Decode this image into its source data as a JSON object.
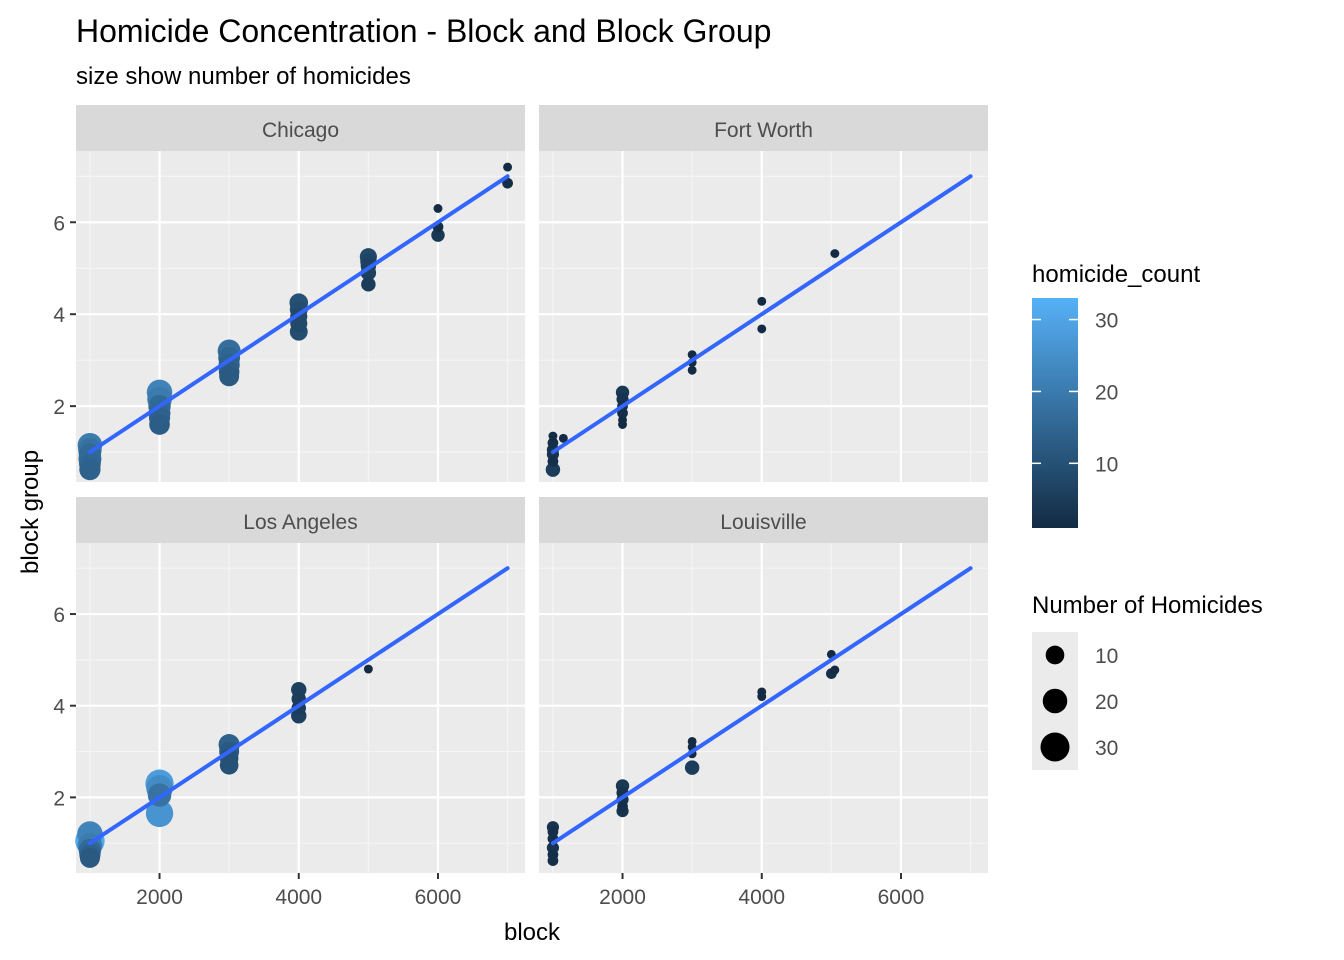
{
  "chart_data": {
    "type": "scatter",
    "title": "Homicide Concentration -  Block and Block Group",
    "subtitle": "size show number of homicides",
    "xlabel": "block",
    "ylabel": "block group",
    "xlim": [
      800,
      7250
    ],
    "ylim": [
      0.35,
      7.55
    ],
    "x_ticks": [
      2000,
      4000,
      6000
    ],
    "x_tick_labels": [
      "2000",
      "4000",
      "6000"
    ],
    "y_ticks": [
      2,
      4,
      6
    ],
    "y_tick_labels": [
      "2",
      "4",
      "6"
    ],
    "grid": true,
    "facets": [
      {
        "name": "Chicago",
        "points": [
          [
            1000,
            1.15,
            20
          ],
          [
            1000,
            1.05,
            18
          ],
          [
            1000,
            0.95,
            16
          ],
          [
            1000,
            0.85,
            17
          ],
          [
            1000,
            0.75,
            15
          ],
          [
            1000,
            0.62,
            14
          ],
          [
            2000,
            2.3,
            22
          ],
          [
            2000,
            2.15,
            20
          ],
          [
            2000,
            2.0,
            16
          ],
          [
            2000,
            1.85,
            15
          ],
          [
            2000,
            1.75,
            14
          ],
          [
            2000,
            1.6,
            13
          ],
          [
            3000,
            3.2,
            17
          ],
          [
            3000,
            3.05,
            15
          ],
          [
            3000,
            2.9,
            14
          ],
          [
            3000,
            2.75,
            13
          ],
          [
            3000,
            2.65,
            12
          ],
          [
            4000,
            4.25,
            10
          ],
          [
            4000,
            4.1,
            9
          ],
          [
            4000,
            3.95,
            8
          ],
          [
            4000,
            3.8,
            8
          ],
          [
            4000,
            3.62,
            9
          ],
          [
            5000,
            5.25,
            8
          ],
          [
            5000,
            5.15,
            7
          ],
          [
            5000,
            5.05,
            6
          ],
          [
            5000,
            4.9,
            6
          ],
          [
            5000,
            4.65,
            5
          ],
          [
            6000,
            6.3,
            1
          ],
          [
            6000,
            5.9,
            2
          ],
          [
            6000,
            5.72,
            4
          ],
          [
            7000,
            7.2,
            1
          ],
          [
            7000,
            6.85,
            2
          ]
        ]
      },
      {
        "name": "Fort Worth",
        "points": [
          [
            1000,
            1.35,
            1
          ],
          [
            1000,
            1.2,
            2
          ],
          [
            1000,
            1.05,
            3
          ],
          [
            1000,
            0.95,
            3
          ],
          [
            1000,
            0.8,
            2
          ],
          [
            1000,
            0.62,
            5
          ],
          [
            1150,
            1.3,
            1
          ],
          [
            2000,
            2.3,
            4
          ],
          [
            2000,
            2.15,
            3
          ],
          [
            2000,
            2.0,
            2
          ],
          [
            2000,
            1.85,
            2
          ],
          [
            2000,
            1.7,
            1
          ],
          [
            2000,
            1.6,
            1
          ],
          [
            3000,
            3.12,
            1
          ],
          [
            3000,
            2.95,
            1
          ],
          [
            3000,
            2.78,
            1
          ],
          [
            4000,
            4.28,
            1
          ],
          [
            4000,
            3.68,
            1
          ],
          [
            5050,
            5.32,
            1
          ]
        ]
      },
      {
        "name": "Los Angeles",
        "points": [
          [
            1000,
            1.2,
            22
          ],
          [
            1000,
            1.05,
            31
          ],
          [
            1000,
            0.95,
            20
          ],
          [
            1000,
            0.85,
            16
          ],
          [
            1000,
            0.75,
            14
          ],
          [
            1000,
            0.68,
            12
          ],
          [
            2000,
            2.3,
            28
          ],
          [
            2000,
            2.2,
            24
          ],
          [
            2000,
            2.05,
            18
          ],
          [
            2000,
            1.65,
            26
          ],
          [
            3000,
            3.15,
            14
          ],
          [
            3000,
            3.0,
            12
          ],
          [
            3000,
            2.85,
            10
          ],
          [
            3000,
            2.7,
            10
          ],
          [
            4000,
            4.35,
            6
          ],
          [
            4000,
            4.15,
            5
          ],
          [
            4000,
            3.95,
            5
          ],
          [
            4000,
            3.78,
            6
          ],
          [
            5000,
            4.8,
            1
          ]
        ]
      },
      {
        "name": "Louisville",
        "points": [
          [
            1000,
            1.35,
            3
          ],
          [
            1000,
            1.25,
            2
          ],
          [
            1000,
            1.1,
            2
          ],
          [
            1000,
            0.9,
            3
          ],
          [
            1000,
            0.75,
            2
          ],
          [
            1000,
            0.62,
            2
          ],
          [
            2000,
            2.25,
            4
          ],
          [
            2000,
            2.1,
            3
          ],
          [
            2000,
            1.95,
            3
          ],
          [
            2000,
            1.8,
            2
          ],
          [
            2000,
            1.7,
            3
          ],
          [
            3000,
            3.22,
            1
          ],
          [
            3000,
            3.1,
            1
          ],
          [
            3000,
            2.95,
            1
          ],
          [
            3000,
            2.65,
            5
          ],
          [
            4000,
            4.3,
            1
          ],
          [
            4000,
            4.2,
            1
          ],
          [
            5000,
            5.12,
            1
          ],
          [
            5000,
            4.7,
            2
          ],
          [
            5050,
            4.78,
            1
          ]
        ]
      }
    ],
    "smooth_line": {
      "x": [
        1000,
        7000
      ],
      "y": [
        1.0,
        7.0
      ],
      "color": "#3366FF"
    },
    "legend_color": {
      "title": "homicide_count",
      "ticks": [
        10,
        20,
        30
      ],
      "tick_labels": [
        "10",
        "20",
        "30"
      ],
      "range": [
        1,
        33
      ],
      "low_color": "#132B43",
      "high_color": "#56B1F7"
    },
    "legend_size": {
      "title": "Number of Homicides",
      "values": [
        10,
        20,
        30
      ],
      "labels": [
        "10",
        "20",
        "30"
      ]
    },
    "legend_placement": "right"
  }
}
